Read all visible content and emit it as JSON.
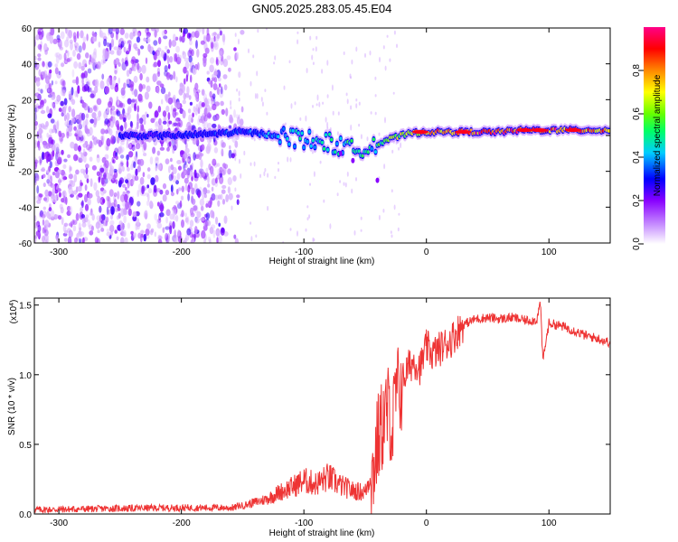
{
  "title": "GN05.2025.283.05.45.E04",
  "chart_data": [
    {
      "type": "heatmap",
      "xlabel": "Height of straight line (km)",
      "ylabel": "Frequency (Hz)",
      "xlim": [
        -320,
        150
      ],
      "ylim": [
        -60,
        60
      ],
      "xticks": [
        -300,
        -200,
        -100,
        0,
        100
      ],
      "yticks": [
        -60,
        -40,
        -20,
        0,
        20,
        40,
        60
      ],
      "colorbar": {
        "label": "Normalized spectral amplitude",
        "range": [
          0,
          1
        ],
        "ticks": [
          "0.0",
          "0.2",
          "0.4",
          "0.6",
          "0.8"
        ],
        "colors": [
          "#ffffff",
          "#cc99ff",
          "#8800ff",
          "#0000ff",
          "#00ccff",
          "#00ff66",
          "#66ff00",
          "#ffff00",
          "#ff8800",
          "#ff0000",
          "#ff0088"
        ]
      },
      "band": [
        {
          "x": -250,
          "f": 0,
          "amp": 0.3
        },
        {
          "x": -200,
          "f": 0,
          "amp": 0.3
        },
        {
          "x": -150,
          "f": 2,
          "amp": 0.35
        },
        {
          "x": -120,
          "f": 0,
          "amp": 0.45
        },
        {
          "x": -100,
          "f": -2,
          "amp": 0.5
        },
        {
          "x": -80,
          "f": -4,
          "amp": 0.5
        },
        {
          "x": -60,
          "f": -8,
          "amp": 0.55
        },
        {
          "x": -45,
          "f": -5,
          "amp": 0.5
        },
        {
          "x": -30,
          "f": -2,
          "amp": 0.65
        },
        {
          "x": -15,
          "f": 1,
          "amp": 0.75
        },
        {
          "x": 0,
          "f": 2,
          "amp": 0.85
        },
        {
          "x": 30,
          "f": 2,
          "amp": 0.95
        },
        {
          "x": 60,
          "f": 2,
          "amp": 0.95
        },
        {
          "x": 80,
          "f": 3,
          "amp": 1.0
        },
        {
          "x": 100,
          "f": 3,
          "amp": 0.95
        },
        {
          "x": 120,
          "f": 3,
          "amp": 0.9
        },
        {
          "x": 150,
          "f": 3,
          "amp": 0.85
        }
      ]
    },
    {
      "type": "line",
      "xlabel": "Height of straight line (km)",
      "ylabel": "SNR (10 * v/v)",
      "scale_label": "(x10",
      "scale_exp": "4",
      "scale_close": ")",
      "xlim": [
        -320,
        150
      ],
      "ylim": [
        0,
        15500
      ],
      "xticks": [
        -300,
        -200,
        -100,
        0,
        100
      ],
      "yticks": [
        "0.0",
        "0.5",
        "1.0",
        "1.5"
      ],
      "ytick_values": [
        0,
        5000,
        10000,
        15000
      ],
      "series": [
        {
          "name": "SNR",
          "color": "#ee3333",
          "x": [
            -320,
            -250,
            -200,
            -160,
            -150,
            -140,
            -130,
            -120,
            -110,
            -100,
            -90,
            -80,
            -70,
            -60,
            -50,
            -45,
            -40,
            -35,
            -30,
            -28,
            -25,
            -20,
            -15,
            -10,
            -5,
            0,
            5,
            10,
            20,
            30,
            40,
            50,
            60,
            70,
            80,
            90,
            93,
            95,
            100,
            110,
            120,
            130,
            140,
            150
          ],
          "y": [
            300,
            400,
            450,
            450,
            500,
            700,
            900,
            1300,
            1600,
            2000,
            1800,
            2200,
            1700,
            1400,
            1300,
            2500,
            5500,
            7000,
            8000,
            6000,
            9000,
            9500,
            10500,
            11000,
            10500,
            12000,
            11500,
            11800,
            12500,
            13600,
            14000,
            14100,
            14000,
            14100,
            13900,
            13900,
            15200,
            11000,
            13700,
            13500,
            13200,
            12800,
            12600,
            12300
          ]
        }
      ]
    }
  ]
}
